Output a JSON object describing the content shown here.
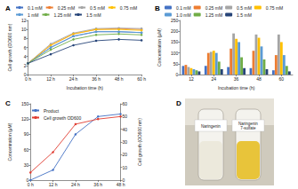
{
  "chart_data": [
    {
      "type": "line",
      "title": "A",
      "x_label": "Incubation time (h)",
      "y_label": "Cell growth (OD600 nm)",
      "categories": [
        "0 h",
        "12 h",
        "24 h",
        "36 h",
        "48 h",
        "60 h"
      ],
      "series": [
        {
          "name": "0.1 mM",
          "color": "#4472c4",
          "values": [
            2.5,
            6.0,
            8.5,
            9.5,
            9.5,
            9.3
          ]
        },
        {
          "name": "0.25 mM",
          "color": "#ed7d31",
          "values": [
            2.5,
            6.5,
            9.0,
            10.0,
            10.2,
            10.0
          ]
        },
        {
          "name": "0.5 mM",
          "color": "#a5a5a5",
          "values": [
            2.5,
            6.8,
            9.2,
            10.2,
            10.3,
            10.2
          ]
        },
        {
          "name": "0.75 mM",
          "color": "#ffc000",
          "values": [
            2.5,
            6.5,
            9.0,
            10.0,
            10.0,
            9.8
          ]
        },
        {
          "name": "1 mM",
          "color": "#5b9bd5",
          "values": [
            2.5,
            6.0,
            8.5,
            9.5,
            9.5,
            9.3
          ]
        },
        {
          "name": "1.25 mM",
          "color": "#70ad47",
          "values": [
            2.5,
            5.5,
            7.8,
            8.8,
            9.0,
            8.8
          ]
        },
        {
          "name": "1.5 mM",
          "color": "#264478",
          "values": [
            2.5,
            4.5,
            6.5,
            7.5,
            7.8,
            7.6
          ]
        }
      ],
      "ylim": [
        0,
        12
      ],
      "yticks": [
        0,
        2,
        4,
        6,
        8,
        10,
        12
      ],
      "legend": "top",
      "marker": "circle",
      "grid": false
    },
    {
      "type": "bar",
      "title": "B",
      "x_label": "Incubation time (h)",
      "y_label": "Concentration (μM)",
      "categories": [
        "12",
        "24",
        "36",
        "48",
        "60"
      ],
      "series": [
        {
          "name": "0.1 mM",
          "color": "#4472c4",
          "values": [
            40,
            40,
            35,
            30,
            20
          ]
        },
        {
          "name": "0.25 mM",
          "color": "#ed7d31",
          "values": [
            45,
            100,
            120,
            110,
            90
          ]
        },
        {
          "name": "0.5 mM",
          "color": "#a5a5a5",
          "values": [
            35,
            105,
            190,
            185,
            185
          ]
        },
        {
          "name": "0.75 mM",
          "color": "#ffc000",
          "values": [
            30,
            110,
            165,
            170,
            150
          ]
        },
        {
          "name": "1.0 mM",
          "color": "#5b9bd5",
          "values": [
            25,
            100,
            150,
            130,
            90
          ]
        },
        {
          "name": "1.25 mM",
          "color": "#70ad47",
          "values": [
            20,
            60,
            80,
            70,
            40
          ]
        },
        {
          "name": "1.5 mM",
          "color": "#264478",
          "values": [
            15,
            25,
            30,
            25,
            15
          ]
        }
      ],
      "ylim": [
        0,
        250
      ],
      "yticks": [
        0,
        50,
        100,
        150,
        200,
        250
      ],
      "legend": "top",
      "grid": false
    },
    {
      "type": "line",
      "title": "C",
      "y_label": "Concentration (μM)",
      "y2_label": "Cell growth (OD600 nm)",
      "categories": [
        "0 h",
        "12 h",
        "24 h",
        "36 h",
        "48 h"
      ],
      "series": [
        {
          "name": "Product",
          "color": "#4472c4",
          "values": [
            0,
            20,
            90,
            125,
            130
          ]
        },
        {
          "name": "Cell growth OD600",
          "color": "#e03c31",
          "axis": "y2",
          "values": [
            6,
            22,
            44,
            48,
            50
          ]
        }
      ],
      "ylim": [
        0,
        150
      ],
      "yticks": [
        0,
        30,
        60,
        90,
        120,
        150
      ],
      "y2lim": [
        0,
        60
      ],
      "y2ticks": [
        0,
        10,
        20,
        30,
        40,
        50,
        60
      ],
      "legend": "upper left",
      "marker": "circle",
      "grid": false
    }
  ],
  "panel_d": {
    "title": "D",
    "tubes": [
      "Naringenin",
      "Naringenin 7-sulfate"
    ]
  }
}
